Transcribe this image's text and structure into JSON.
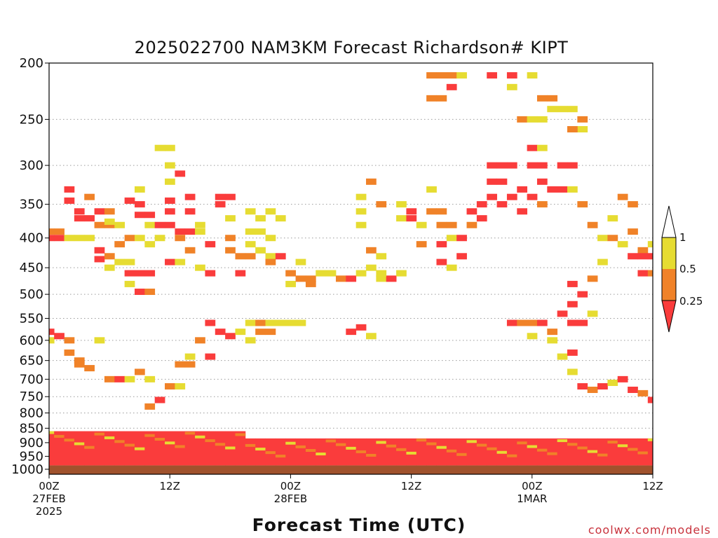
{
  "chart_data": {
    "type": "heatmap",
    "title": "2025022700 NAM3KM Forecast Richardson# KIPT",
    "xlabel": "Forecast Time (UTC)",
    "ylabel": "",
    "credit": "coolwx.com/models",
    "x_range_hours": [
      0,
      60
    ],
    "y_range_hpa": [
      200,
      1020
    ],
    "y_scale": "log-pressure (inverted)",
    "grid": "dotted horizontal at labeled levels",
    "y_ticks": [
      200,
      250,
      300,
      350,
      400,
      450,
      500,
      550,
      600,
      650,
      700,
      750,
      800,
      850,
      900,
      950,
      1000
    ],
    "x_ticks": [
      {
        "hour": 0,
        "lines": [
          "00Z",
          "27FEB",
          "2025"
        ]
      },
      {
        "hour": 12,
        "lines": [
          "12Z"
        ]
      },
      {
        "hour": 24,
        "lines": [
          "00Z",
          "28FEB"
        ]
      },
      {
        "hour": 36,
        "lines": [
          "12Z"
        ]
      },
      {
        "hour": 48,
        "lines": [
          "00Z",
          "1MAR"
        ]
      },
      {
        "hour": 60,
        "lines": [
          "12Z"
        ]
      }
    ],
    "legend": {
      "placement": "right",
      "labels": [
        "1",
        "0.5",
        "0.25"
      ],
      "bins": [
        {
          "range": "0.5-1",
          "color": "#e6dc32"
        },
        {
          "range": "0.25-0.5",
          "color": "#f08228"
        },
        {
          "range": "<0.25",
          "color": "#fa3c3c"
        }
      ]
    },
    "colors": {
      "yellow": "#e6dc32",
      "orange": "#f08228",
      "red": "#fa3c3c",
      "ground": "#a0522d"
    },
    "ground_hpa": 985,
    "cells": [
      [
        0,
        400,
        "r"
      ],
      [
        1,
        400,
        "r"
      ],
      [
        0,
        390,
        "o"
      ],
      [
        1,
        390,
        "o"
      ],
      [
        2,
        400,
        "y"
      ],
      [
        3,
        400,
        "y"
      ],
      [
        2,
        330,
        "r"
      ],
      [
        2,
        345,
        "r"
      ],
      [
        3,
        360,
        "r"
      ],
      [
        3,
        370,
        "r"
      ],
      [
        4,
        370,
        "r"
      ],
      [
        4,
        340,
        "o"
      ],
      [
        5,
        360,
        "r"
      ],
      [
        5,
        380,
        "o"
      ],
      [
        4,
        400,
        "y"
      ],
      [
        6,
        360,
        "o"
      ],
      [
        6,
        380,
        "o"
      ],
      [
        5,
        420,
        "r"
      ],
      [
        5,
        435,
        "r"
      ],
      [
        6,
        430,
        "o"
      ],
      [
        6,
        450,
        "y"
      ],
      [
        6,
        375,
        "y"
      ],
      [
        7,
        380,
        "y"
      ],
      [
        7,
        410,
        "o"
      ],
      [
        7,
        440,
        "y"
      ],
      [
        8,
        440,
        "y"
      ],
      [
        8,
        400,
        "o"
      ],
      [
        8,
        345,
        "r"
      ],
      [
        9,
        365,
        "r"
      ],
      [
        10,
        365,
        "r"
      ],
      [
        9,
        350,
        "r"
      ],
      [
        10,
        380,
        "y"
      ],
      [
        9,
        400,
        "y"
      ],
      [
        10,
        410,
        "y"
      ],
      [
        9,
        330,
        "y"
      ],
      [
        8,
        460,
        "r"
      ],
      [
        8,
        480,
        "y"
      ],
      [
        9,
        460,
        "r"
      ],
      [
        10,
        460,
        "r"
      ],
      [
        9,
        495,
        "r"
      ],
      [
        10,
        495,
        "o"
      ],
      [
        11,
        280,
        "y"
      ],
      [
        12,
        280,
        "y"
      ],
      [
        11,
        380,
        "r"
      ],
      [
        11,
        400,
        "y"
      ],
      [
        12,
        300,
        "y"
      ],
      [
        12,
        320,
        "y"
      ],
      [
        12,
        345,
        "r"
      ],
      [
        12,
        360,
        "r"
      ],
      [
        12,
        380,
        "r"
      ],
      [
        12,
        440,
        "r"
      ],
      [
        13,
        310,
        "r"
      ],
      [
        13,
        390,
        "r"
      ],
      [
        13,
        400,
        "o"
      ],
      [
        14,
        360,
        "r"
      ],
      [
        14,
        390,
        "r"
      ],
      [
        14,
        420,
        "o"
      ],
      [
        13,
        440,
        "y"
      ],
      [
        14,
        340,
        "r"
      ],
      [
        15,
        390,
        "y"
      ],
      [
        15,
        380,
        "y"
      ],
      [
        15,
        450,
        "y"
      ],
      [
        16,
        410,
        "r"
      ],
      [
        16,
        460,
        "r"
      ],
      [
        17,
        340,
        "r"
      ],
      [
        17,
        350,
        "r"
      ],
      [
        18,
        340,
        "r"
      ],
      [
        18,
        370,
        "y"
      ],
      [
        18,
        400,
        "o"
      ],
      [
        18,
        420,
        "o"
      ],
      [
        19,
        430,
        "o"
      ],
      [
        19,
        460,
        "r"
      ],
      [
        20,
        430,
        "o"
      ],
      [
        20,
        390,
        "y"
      ],
      [
        20,
        410,
        "y"
      ],
      [
        20,
        360,
        "y"
      ],
      [
        21,
        370,
        "y"
      ],
      [
        21,
        390,
        "y"
      ],
      [
        21,
        420,
        "y"
      ],
      [
        22,
        360,
        "y"
      ],
      [
        22,
        400,
        "y"
      ],
      [
        22,
        430,
        "y"
      ],
      [
        22,
        440,
        "o"
      ],
      [
        23,
        370,
        "y"
      ],
      [
        23,
        430,
        "r"
      ],
      [
        24,
        480,
        "y"
      ],
      [
        24,
        460,
        "o"
      ],
      [
        25,
        470,
        "o"
      ],
      [
        25,
        440,
        "y"
      ],
      [
        26,
        480,
        "o"
      ],
      [
        16,
        560,
        "r"
      ],
      [
        17,
        580,
        "r"
      ],
      [
        18,
        590,
        "r"
      ],
      [
        19,
        580,
        "y"
      ],
      [
        20,
        560,
        "y"
      ],
      [
        20,
        600,
        "y"
      ],
      [
        21,
        560,
        "o"
      ],
      [
        22,
        560,
        "y"
      ],
      [
        23,
        560,
        "y"
      ],
      [
        24,
        560,
        "y"
      ],
      [
        25,
        560,
        "y"
      ],
      [
        21,
        580,
        "o"
      ],
      [
        22,
        580,
        "o"
      ],
      [
        26,
        470,
        "o"
      ],
      [
        27,
        460,
        "y"
      ],
      [
        28,
        460,
        "y"
      ],
      [
        29,
        470,
        "o"
      ],
      [
        30,
        470,
        "r"
      ],
      [
        31,
        460,
        "y"
      ],
      [
        32,
        450,
        "y"
      ],
      [
        33,
        470,
        "y"
      ],
      [
        34,
        470,
        "r"
      ],
      [
        30,
        580,
        "r"
      ],
      [
        31,
        570,
        "r"
      ],
      [
        32,
        590,
        "y"
      ],
      [
        31,
        380,
        "y"
      ],
      [
        31,
        360,
        "y"
      ],
      [
        31,
        340,
        "y"
      ],
      [
        32,
        320,
        "o"
      ],
      [
        33,
        350,
        "o"
      ],
      [
        32,
        420,
        "o"
      ],
      [
        33,
        430,
        "y"
      ],
      [
        33,
        460,
        "y"
      ],
      [
        35,
        350,
        "y"
      ],
      [
        35,
        370,
        "y"
      ],
      [
        35,
        460,
        "y"
      ],
      [
        36,
        360,
        "r"
      ],
      [
        36,
        370,
        "r"
      ],
      [
        37,
        380,
        "y"
      ],
      [
        37,
        410,
        "o"
      ],
      [
        38,
        360,
        "o"
      ],
      [
        38,
        330,
        "y"
      ],
      [
        38,
        230,
        "o"
      ],
      [
        39,
        230,
        "o"
      ],
      [
        40,
        210,
        "o"
      ],
      [
        40,
        220,
        "r"
      ],
      [
        41,
        210,
        "y"
      ],
      [
        38,
        210,
        "o"
      ],
      [
        39,
        210,
        "o"
      ],
      [
        39,
        360,
        "o"
      ],
      [
        39,
        380,
        "o"
      ],
      [
        39,
        410,
        "r"
      ],
      [
        39,
        440,
        "r"
      ],
      [
        40,
        380,
        "o"
      ],
      [
        40,
        400,
        "y"
      ],
      [
        40,
        450,
        "y"
      ],
      [
        41,
        400,
        "r"
      ],
      [
        41,
        430,
        "r"
      ],
      [
        42,
        360,
        "r"
      ],
      [
        42,
        380,
        "o"
      ],
      [
        43,
        350,
        "r"
      ],
      [
        43,
        370,
        "r"
      ],
      [
        44,
        300,
        "r"
      ],
      [
        44,
        320,
        "r"
      ],
      [
        44,
        340,
        "r"
      ],
      [
        45,
        300,
        "r"
      ],
      [
        45,
        320,
        "r"
      ],
      [
        45,
        350,
        "r"
      ],
      [
        46,
        300,
        "r"
      ],
      [
        46,
        340,
        "r"
      ],
      [
        47,
        330,
        "r"
      ],
      [
        47,
        360,
        "r"
      ],
      [
        48,
        300,
        "r"
      ],
      [
        48,
        340,
        "r"
      ],
      [
        49,
        300,
        "r"
      ],
      [
        49,
        320,
        "r"
      ],
      [
        49,
        350,
        "o"
      ],
      [
        50,
        330,
        "r"
      ],
      [
        51,
        330,
        "r"
      ],
      [
        52,
        330,
        "y"
      ],
      [
        44,
        210,
        "r"
      ],
      [
        46,
        210,
        "r"
      ],
      [
        48,
        210,
        "y"
      ],
      [
        46,
        220,
        "y"
      ],
      [
        48,
        280,
        "r"
      ],
      [
        49,
        280,
        "y"
      ],
      [
        47,
        250,
        "o"
      ],
      [
        48,
        250,
        "y"
      ],
      [
        49,
        250,
        "y"
      ],
      [
        49,
        230,
        "o"
      ],
      [
        50,
        230,
        "o"
      ],
      [
        50,
        240,
        "y"
      ],
      [
        51,
        240,
        "y"
      ],
      [
        52,
        240,
        "y"
      ],
      [
        53,
        250,
        "o"
      ],
      [
        53,
        260,
        "y"
      ],
      [
        52,
        260,
        "o"
      ],
      [
        51,
        300,
        "r"
      ],
      [
        52,
        300,
        "r"
      ],
      [
        53,
        350,
        "o"
      ],
      [
        54,
        380,
        "o"
      ],
      [
        55,
        400,
        "y"
      ],
      [
        56,
        400,
        "o"
      ],
      [
        56,
        370,
        "y"
      ],
      [
        57,
        340,
        "o"
      ],
      [
        58,
        350,
        "o"
      ],
      [
        58,
        390,
        "o"
      ],
      [
        59,
        420,
        "o"
      ],
      [
        57,
        410,
        "y"
      ],
      [
        58,
        430,
        "r"
      ],
      [
        59,
        430,
        "r"
      ],
      [
        60,
        430,
        "r"
      ],
      [
        59,
        460,
        "r"
      ],
      [
        60,
        460,
        "o"
      ],
      [
        60,
        410,
        "y"
      ],
      [
        55,
        440,
        "y"
      ],
      [
        54,
        470,
        "o"
      ],
      [
        53,
        500,
        "r"
      ],
      [
        52,
        480,
        "r"
      ],
      [
        52,
        520,
        "r"
      ],
      [
        51,
        540,
        "r"
      ],
      [
        52,
        560,
        "r"
      ],
      [
        53,
        560,
        "r"
      ],
      [
        54,
        540,
        "y"
      ],
      [
        46,
        560,
        "r"
      ],
      [
        47,
        560,
        "o"
      ],
      [
        48,
        560,
        "o"
      ],
      [
        49,
        560,
        "r"
      ],
      [
        50,
        580,
        "o"
      ],
      [
        50,
        600,
        "y"
      ],
      [
        48,
        590,
        "y"
      ],
      [
        51,
        640,
        "y"
      ],
      [
        52,
        630,
        "r"
      ],
      [
        52,
        680,
        "y"
      ],
      [
        53,
        720,
        "r"
      ],
      [
        54,
        730,
        "o"
      ],
      [
        55,
        720,
        "r"
      ],
      [
        56,
        710,
        "y"
      ],
      [
        57,
        700,
        "r"
      ],
      [
        58,
        730,
        "r"
      ],
      [
        59,
        740,
        "o"
      ],
      [
        60,
        760,
        "r"
      ],
      [
        0,
        600,
        "y"
      ],
      [
        0,
        580,
        "r"
      ],
      [
        1,
        590,
        "r"
      ],
      [
        2,
        600,
        "o"
      ],
      [
        2,
        630,
        "o"
      ],
      [
        3,
        650,
        "o"
      ],
      [
        3,
        660,
        "o"
      ],
      [
        4,
        670,
        "o"
      ],
      [
        5,
        600,
        "y"
      ],
      [
        6,
        700,
        "o"
      ],
      [
        7,
        700,
        "r"
      ],
      [
        8,
        700,
        "y"
      ],
      [
        9,
        680,
        "o"
      ],
      [
        10,
        700,
        "y"
      ],
      [
        13,
        660,
        "o"
      ],
      [
        14,
        660,
        "o"
      ],
      [
        14,
        640,
        "y"
      ],
      [
        15,
        600,
        "o"
      ],
      [
        16,
        640,
        "r"
      ],
      [
        12,
        720,
        "o"
      ],
      [
        13,
        720,
        "y"
      ],
      [
        11,
        760,
        "r"
      ],
      [
        10,
        780,
        "o"
      ]
    ]
  }
}
